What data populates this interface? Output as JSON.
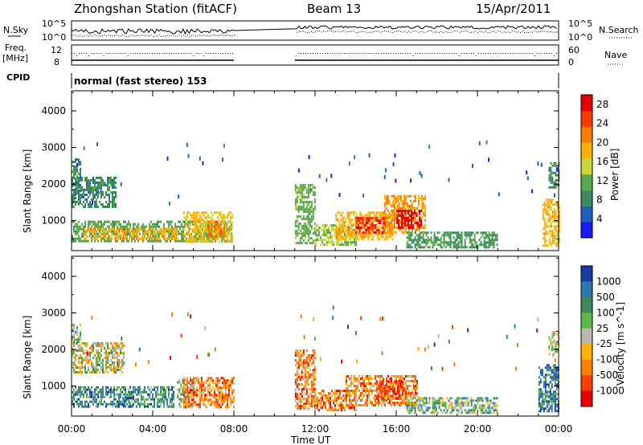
{
  "header": {
    "title": "Zhongshan Station (fitACF)",
    "beam": "Beam 13",
    "date": "15/Apr/2011"
  },
  "strip": {
    "nsky_label": "N.Sky",
    "nsky_ticks": [
      "10^5",
      "10^0"
    ],
    "nsearch_label": "N.Search",
    "nsearch_ticks": [
      "10^5",
      "10^0"
    ],
    "freq_label_1": "Freq.",
    "freq_label_2": "[MHz]",
    "freq_ticks": [
      "12",
      "8"
    ],
    "nave_label": "Nave",
    "nave_ticks": [
      "60",
      "0"
    ],
    "cpid_label": "CPID",
    "cpid_text": "normal (fast stereo) 153"
  },
  "chart_data": [
    {
      "type": "heatmap",
      "panel": "power",
      "xlabel": "",
      "ylabel": "Slant Range [km]",
      "x_ticks": [
        "00:00",
        "04:00",
        "08:00",
        "12:00",
        "16:00",
        "20:00",
        "00:00"
      ],
      "xlim_hours": [
        0,
        24
      ],
      "y_ticks": [
        1000,
        2000,
        3000,
        4000
      ],
      "ylim": [
        180,
        4550
      ],
      "colorbar": {
        "label": "Power [dB]",
        "ticks": [
          4,
          8,
          12,
          16,
          20,
          24,
          28
        ],
        "range": [
          0,
          30
        ],
        "colors": [
          "#1a1aff",
          "#1f5fc0",
          "#3a8a5a",
          "#5aa84a",
          "#c8d838",
          "#ffb000",
          "#ff7a00",
          "#ff3a00",
          "#e80000"
        ]
      },
      "data_gap_hours": [
        8.0,
        11.0
      ],
      "regions": [
        {
          "t0": 0.0,
          "t1": 0.45,
          "r0": 1500,
          "r1": 2700,
          "level": 8
        },
        {
          "t0": 0.0,
          "t1": 2.2,
          "r0": 1350,
          "r1": 2200,
          "level": 8
        },
        {
          "t0": 0.0,
          "t1": 7.9,
          "r0": 450,
          "r1": 1000,
          "level": 11
        },
        {
          "t0": 0.6,
          "t1": 5.2,
          "r0": 500,
          "r1": 800,
          "level": 18
        },
        {
          "t0": 5.5,
          "t1": 7.9,
          "r0": 450,
          "r1": 1250,
          "level": 17
        },
        {
          "t0": 6.7,
          "t1": 7.5,
          "r0": 550,
          "r1": 1000,
          "level": 22
        },
        {
          "t0": 11.0,
          "t1": 12.0,
          "r0": 400,
          "r1": 2000,
          "level": 12
        },
        {
          "t0": 12.0,
          "t1": 14.0,
          "r0": 350,
          "r1": 900,
          "level": 14
        },
        {
          "t0": 13.0,
          "t1": 15.8,
          "r0": 500,
          "r1": 1250,
          "level": 18
        },
        {
          "t0": 14.0,
          "t1": 15.5,
          "r0": 700,
          "r1": 1100,
          "level": 26
        },
        {
          "t0": 15.4,
          "t1": 17.4,
          "r0": 700,
          "r1": 1700,
          "level": 20
        },
        {
          "t0": 16.0,
          "t1": 17.2,
          "r0": 800,
          "r1": 1300,
          "level": 28
        },
        {
          "t0": 16.5,
          "t1": 21.0,
          "r0": 250,
          "r1": 700,
          "level": 9
        },
        {
          "t0": 23.2,
          "t1": 24.0,
          "r0": 300,
          "r1": 1600,
          "level": 18
        },
        {
          "t0": 23.5,
          "t1": 24.0,
          "r0": 1900,
          "r1": 2600,
          "level": 8
        }
      ]
    },
    {
      "type": "heatmap",
      "panel": "velocity",
      "xlabel": "Time UT",
      "ylabel": "Slant Range [km]",
      "x_ticks": [
        "00:00",
        "04:00",
        "08:00",
        "12:00",
        "16:00",
        "20:00",
        "00:00"
      ],
      "xlim_hours": [
        0,
        24
      ],
      "y_ticks": [
        1000,
        2000,
        3000,
        4000
      ],
      "ylim": [
        180,
        4550
      ],
      "colorbar": {
        "label": "Velocity [m s^-1]",
        "ticks": [
          "1000",
          "500",
          "100",
          "25",
          "-25",
          "-100",
          "-500",
          "-1000"
        ],
        "colors": [
          "#1a3aa0",
          "#2a7ab0",
          "#3a8a5a",
          "#5ab84a",
          "#b8b8b0",
          "#ffb000",
          "#ff8000",
          "#ff4000",
          "#e80000"
        ]
      },
      "data_gap_hours": [
        8.0,
        11.0
      ],
      "regions": [
        {
          "t0": 0.0,
          "t1": 2.6,
          "r0": 1400,
          "r1": 2200,
          "level": 4
        },
        {
          "t0": 0.0,
          "t1": 0.4,
          "r0": 2200,
          "r1": 2700,
          "level": 3
        },
        {
          "t0": 0.0,
          "t1": 5.0,
          "r0": 450,
          "r1": 1000,
          "level": 2
        },
        {
          "t0": 2.5,
          "t1": 3.0,
          "r0": 450,
          "r1": 700,
          "level": 1
        },
        {
          "t0": 5.2,
          "t1": 6.0,
          "r0": 450,
          "r1": 1200,
          "level": 3
        },
        {
          "t0": 5.5,
          "t1": 8.0,
          "r0": 450,
          "r1": 1250,
          "level": 6
        },
        {
          "t0": 11.0,
          "t1": 12.0,
          "r0": 400,
          "r1": 2000,
          "level": 6
        },
        {
          "t0": 12.0,
          "t1": 14.0,
          "r0": 350,
          "r1": 900,
          "level": 6
        },
        {
          "t0": 13.5,
          "t1": 17.0,
          "r0": 450,
          "r1": 1300,
          "level": 6
        },
        {
          "t0": 15.0,
          "t1": 16.5,
          "r0": 650,
          "r1": 1150,
          "level": 7
        },
        {
          "t0": 16.5,
          "t1": 21.0,
          "r0": 250,
          "r1": 700,
          "level": 3
        },
        {
          "t0": 23.0,
          "t1": 24.0,
          "r0": 300,
          "r1": 1600,
          "level": 1
        },
        {
          "t0": 23.5,
          "t1": 24.0,
          "r0": 1900,
          "r1": 2500,
          "level": 4
        }
      ]
    }
  ],
  "colors": {
    "axis": "#000000",
    "background": "#ffffff"
  }
}
